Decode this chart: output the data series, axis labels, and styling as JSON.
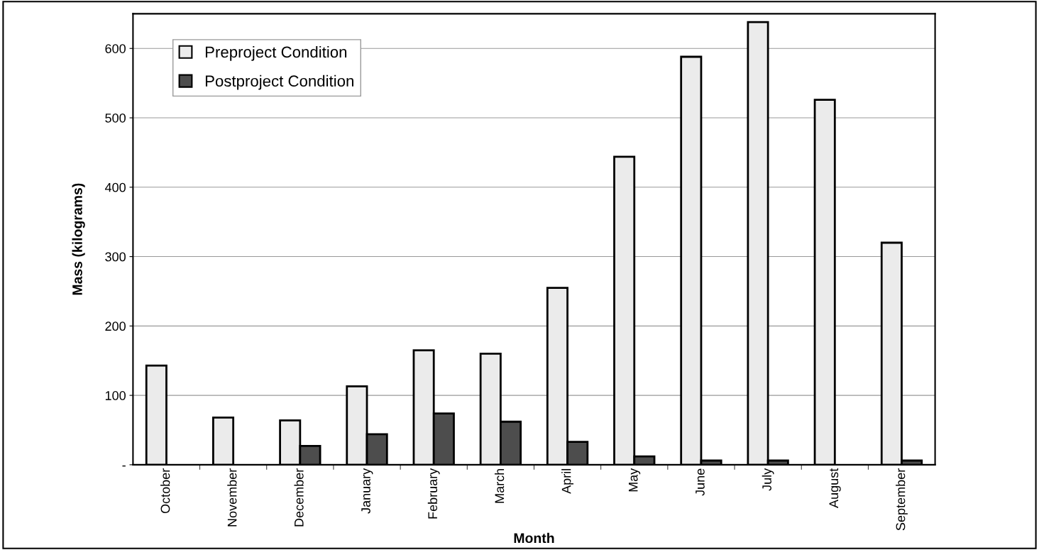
{
  "chart_data": {
    "type": "bar",
    "xlabel": "Month",
    "ylabel": "Mass (kilograms)",
    "categories": [
      "October",
      "November",
      "December",
      "January",
      "February",
      "March",
      "April",
      "May",
      "June",
      "July",
      "August",
      "September"
    ],
    "series": [
      {
        "name": "Preproject Condition",
        "color": "#ebebeb",
        "values": [
          143,
          68,
          64,
          113,
          165,
          160,
          255,
          444,
          588,
          638,
          526,
          320
        ]
      },
      {
        "name": "Postproject Condition",
        "color": "#4d4d4d",
        "values": [
          null,
          null,
          27,
          44,
          74,
          62,
          33,
          12,
          6,
          6,
          null,
          6
        ]
      }
    ],
    "ylim": [
      0,
      650
    ],
    "yticks": [
      {
        "value": 0,
        "label": "-"
      },
      100,
      200,
      300,
      400,
      500,
      600
    ],
    "grid": "y",
    "legend": "top left"
  }
}
